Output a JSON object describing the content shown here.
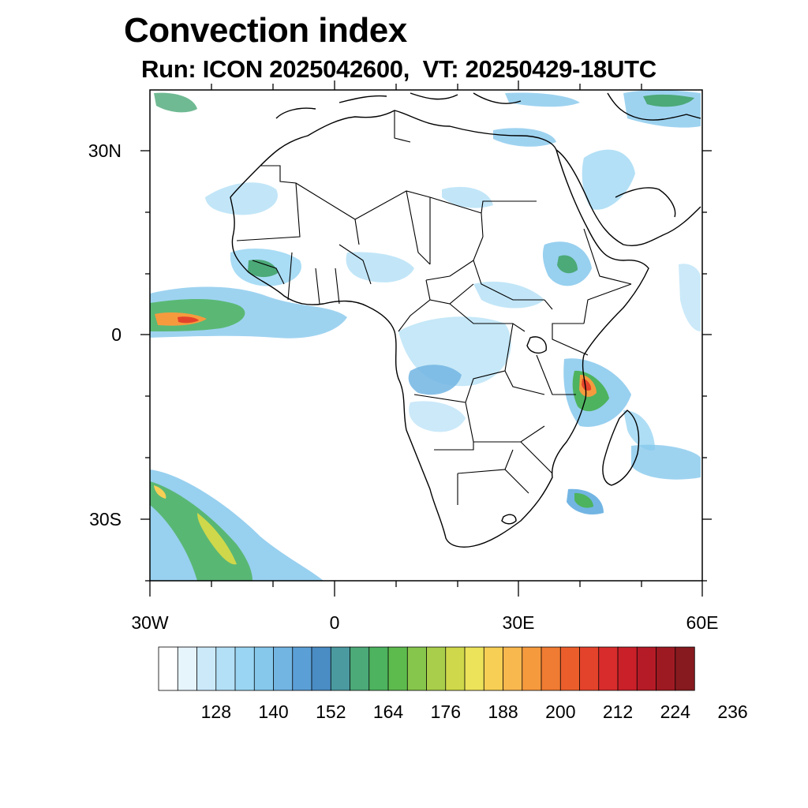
{
  "title": "Convection index",
  "subtitle": "Run: ICON 2025042600,  VT: 20250429-18UTC",
  "map": {
    "lat_labels": [
      "30N",
      "0",
      "30S"
    ],
    "lon_labels": [
      "30W",
      "0",
      "30E",
      "60E"
    ],
    "lon_range": [
      -30,
      60
    ],
    "lat_range": [
      -40,
      40
    ]
  },
  "colorbar": {
    "labels": [
      "128",
      "140",
      "152",
      "164",
      "176",
      "188",
      "200",
      "212",
      "224",
      "236"
    ],
    "colors": [
      "#ffffff",
      "#e6f4fc",
      "#cbe9f9",
      "#b3e0f6",
      "#9ad6f3",
      "#86c8ec",
      "#72b5e3",
      "#5b9fd7",
      "#4a8cc4",
      "#4a9aa0",
      "#4ca978",
      "#4db35e",
      "#5dbb4e",
      "#87c64c",
      "#a9ce4b",
      "#cfd84a",
      "#ede35a",
      "#f7cf55",
      "#f9b84e",
      "#f69a3e",
      "#f07b32",
      "#eb5e2c",
      "#e4432b",
      "#d82c2c",
      "#c92029",
      "#b51b26",
      "#9e1a22",
      "#861a1e"
    ]
  }
}
